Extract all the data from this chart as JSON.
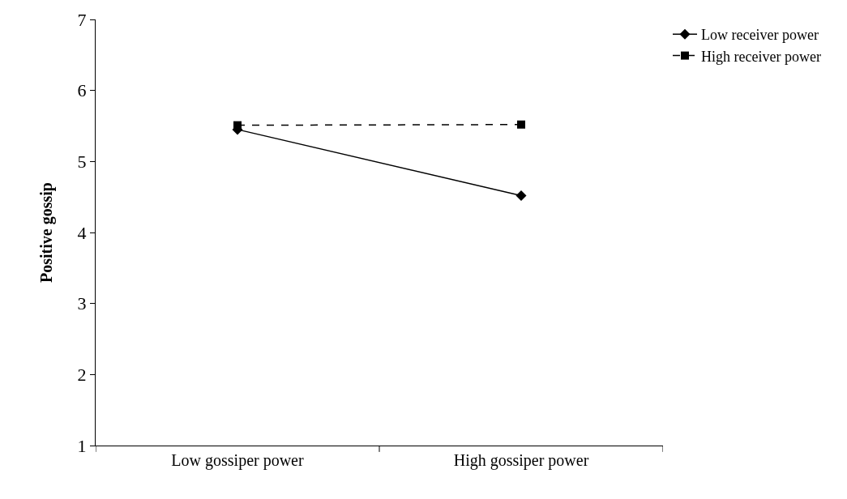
{
  "chart_data": {
    "type": "line",
    "ylabel": "Positive gossip",
    "categories": [
      "Low gossiper power",
      "High gossiper power"
    ],
    "series": [
      {
        "name": "Low receiver power",
        "color": "#000000",
        "values": [
          5.45,
          4.52
        ],
        "marker": "diamond",
        "line_style": "solid"
      },
      {
        "name": "High receiver power",
        "color": "#000000",
        "values": [
          5.51,
          5.52
        ],
        "marker": "square",
        "line_style": "dashed"
      }
    ],
    "ylim": [
      1,
      7
    ],
    "yticks": [
      1,
      2,
      3,
      4,
      5,
      6,
      7
    ],
    "grid": false,
    "legend": "top right"
  }
}
